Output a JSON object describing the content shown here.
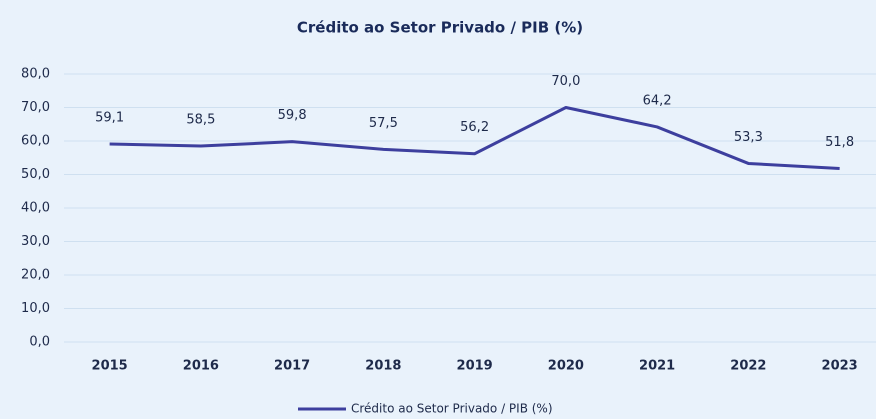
{
  "chart_data": {
    "type": "line",
    "title": "Crédito ao Setor Privado / PIB (%)",
    "categories": [
      "2015",
      "2016",
      "2017",
      "2018",
      "2019",
      "2020",
      "2021",
      "2022",
      "2023"
    ],
    "series": [
      {
        "name": "Crédito ao Setor Privado / PIB (%)",
        "color": "#3d3f9e",
        "values": [
          59.1,
          58.5,
          59.8,
          57.5,
          56.2,
          70.0,
          64.2,
          53.3,
          51.8
        ],
        "value_labels": [
          "59,1",
          "58,5",
          "59,8",
          "57,5",
          "56,2",
          "70,0",
          "64,2",
          "53,3",
          "51,8"
        ]
      }
    ],
    "ylim": [
      0,
      80
    ],
    "yticks": [
      {
        "value": 0,
        "label": "0,0"
      },
      {
        "value": 10,
        "label": "10,0"
      },
      {
        "value": 20,
        "label": "20,0"
      },
      {
        "value": 30,
        "label": "30,0"
      },
      {
        "value": 40,
        "label": "40,0"
      },
      {
        "value": 50,
        "label": "50,0"
      },
      {
        "value": 60,
        "label": "60,0"
      },
      {
        "value": 70,
        "label": "70,0"
      },
      {
        "value": 80,
        "label": "80,0"
      }
    ],
    "grid": true,
    "legend": "bottom"
  }
}
